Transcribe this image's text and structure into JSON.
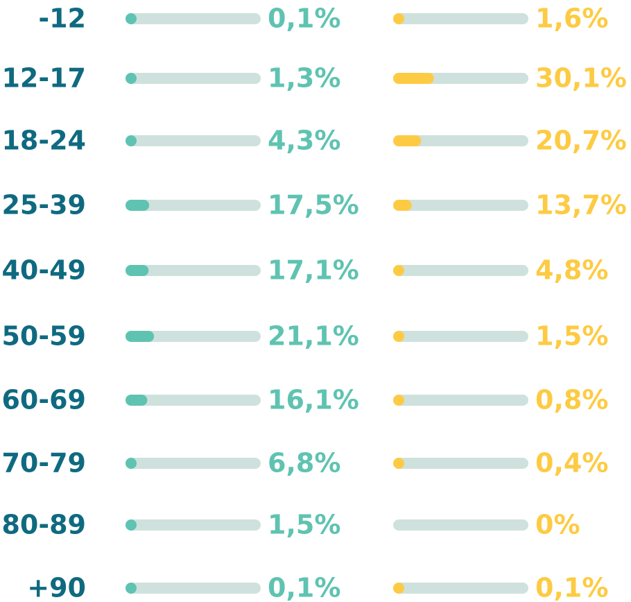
{
  "chart_data": {
    "type": "progress-bar",
    "categories": [
      "-12",
      "12-17",
      "18-24",
      "25-39",
      "40-49",
      "50-59",
      "60-69",
      "70-79",
      "80-89",
      "+90"
    ],
    "xlim": [
      0,
      100
    ],
    "track_color": "#cfe1dd",
    "category_color": "#0f6a80",
    "series": [
      {
        "color": "#5fc3b1",
        "values": [
          0.1,
          1.3,
          4.3,
          17.5,
          17.1,
          21.1,
          16.1,
          6.8,
          1.5,
          0.1
        ],
        "value_labels": [
          "0,1%",
          "1,3%",
          "4,3%",
          "17,5%",
          "17,1%",
          "21,1%",
          "16,1%",
          "6,8%",
          "1,5%",
          "0,1%"
        ]
      },
      {
        "color": "#fdcb43",
        "values": [
          1.6,
          30.1,
          20.7,
          13.7,
          4.8,
          1.5,
          0.8,
          0.4,
          0,
          0.1
        ],
        "value_labels": [
          "1,6%",
          "30,1%",
          "20,7%",
          "13,7%",
          "4,8%",
          "1,5%",
          "0,8%",
          "0,4%",
          "0%",
          "0,1%"
        ]
      }
    ]
  }
}
